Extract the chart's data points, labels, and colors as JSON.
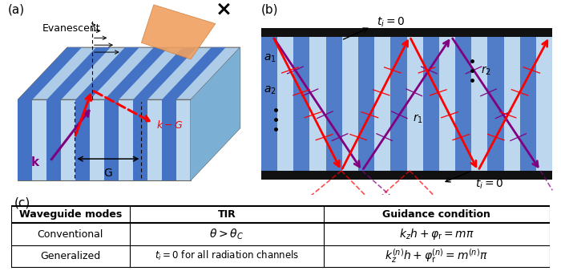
{
  "panel_a_label": "(a)",
  "panel_b_label": "(b)",
  "panel_c_label": "(c)",
  "blue_dark": "#4472C4",
  "blue_light": "#9DC3E6",
  "blue_bg": "#BDD7EE",
  "blue_mid": "#6FA8DC",
  "right_face_color": "#7BAFD4",
  "top_face_color": "#AECCE8"
}
